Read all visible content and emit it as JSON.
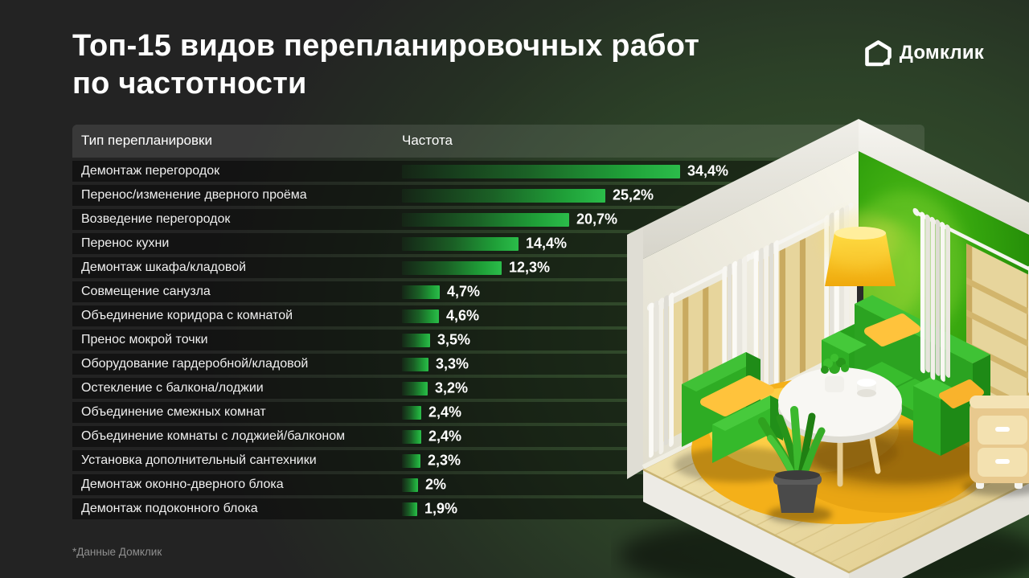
{
  "title": {
    "line1": "Топ-15 видов перепланировочных работ",
    "line2": "по частотности"
  },
  "logo": {
    "text": "Домклик"
  },
  "table": {
    "columns": {
      "type": "Тип перепланировки",
      "frequency": "Частота"
    }
  },
  "chart_data": {
    "type": "bar",
    "orientation": "horizontal",
    "unit": "%",
    "title": "Топ-15 видов перепланировочных работ по частотности",
    "categories": [
      "Демонтаж перегородок",
      "Перенос/изменение дверного проёма",
      "Возведение перегородок",
      "Перенос кухни",
      "Демонтаж шкафа/кладовой",
      "Совмещение санузла",
      "Объединение коридора с комнатой",
      "Пренос мокрой точки",
      "Оборудование гардеробной/кладовой",
      "Остекление с балкона/лоджии",
      "Объединение смежных комнат",
      "Объединение комнаты с лоджией/балконом",
      "Установка дополнительный сантехники",
      "Демонтаж оконно-дверного блока",
      "Демонтаж подоконного блока"
    ],
    "values": [
      34.4,
      25.2,
      20.7,
      14.4,
      12.3,
      4.7,
      4.6,
      3.5,
      3.3,
      3.2,
      2.4,
      2.4,
      2.3,
      2,
      1.9
    ],
    "value_labels": [
      "34,4%",
      "25,2%",
      "20,7%",
      "14,4%",
      "12,3%",
      "4,7%",
      "4,6%",
      "3,5%",
      "3,3%",
      "3,2%",
      "2,4%",
      "2,4%",
      "2,3%",
      "2%",
      "1,9%"
    ],
    "xlim": [
      0,
      40
    ],
    "bar_color": "#21A038",
    "legend": false,
    "grid": false
  },
  "footnote": "*Данные Домклик",
  "illustration": {
    "name": "isometric-living-room-3d",
    "elements": [
      "green accent wall",
      "white walls",
      "windows with white curtains",
      "wood plank floor",
      "yellow round rug",
      "green sofa with yellow pillows",
      "green armchair",
      "white round coffee table",
      "yellow floor lamp",
      "potted plant",
      "wooden nightstand"
    ]
  },
  "colors": {
    "accent_green": "#21A038",
    "background": "#232323",
    "wall_green": "#35A50D",
    "rug_yellow": "#F5B41D"
  }
}
